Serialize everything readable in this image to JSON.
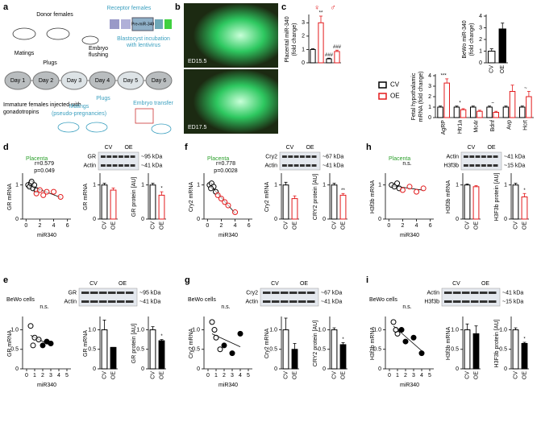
{
  "diagram": {
    "letter": "a",
    "donor": "Donor females",
    "receptor": "Receptor females",
    "construct": "Pre-miR-340",
    "days": [
      "Day 1",
      "Day 2",
      "Day 3",
      "Day 4",
      "Day 5",
      "Day 6"
    ],
    "matings": "Matings",
    "plugs": "Plugs",
    "flushing": [
      "Embryo",
      "flushing"
    ],
    "incubation": [
      "Blastocyst incubation",
      "with lentivirus"
    ],
    "injection": [
      "Immature females injected with",
      "gonadotropins"
    ],
    "pseudo": [
      "Matings",
      "(pseudo-pregnancies)"
    ],
    "plugs2": "Plugs",
    "transfer": "Embryo transfer"
  },
  "photos": {
    "letter": "b",
    "labels": [
      "ED15.5",
      "ED17.5"
    ]
  },
  "panels": [
    {
      "letter": "c"
    },
    {
      "letter": "d",
      "title": "Placenta",
      "blot_rows": [
        "GR",
        "Actin"
      ],
      "lanes": [
        "CV",
        "OE"
      ],
      "sizes": [
        "~95 kDa",
        "~41 kDa"
      ]
    },
    {
      "letter": "f",
      "title": "Placenta",
      "blot_rows": [
        "Cry2",
        "Actin"
      ],
      "lanes": [
        "CV",
        "OE"
      ],
      "sizes": [
        "~67 kDa",
        "~41 kDa"
      ]
    },
    {
      "letter": "h",
      "title": "Placenta",
      "blot_rows": [
        "Actin",
        "H3f3b"
      ],
      "lanes": [
        "CV",
        "OE"
      ],
      "sizes": [
        "~41 kDa",
        "~15 kDa"
      ]
    },
    {
      "letter": "e",
      "title": "BeWo cells",
      "blot_rows": [
        "GR",
        "Actin"
      ],
      "lanes": [
        "CV",
        "OE"
      ],
      "sizes": [
        "~95 kDa",
        "~41 kDa"
      ]
    },
    {
      "letter": "g",
      "title": "BeWo cells",
      "blot_rows": [
        "Cry2",
        "Actin"
      ],
      "lanes": [
        "CV",
        "OE"
      ],
      "sizes": [
        "~67 kDa",
        "~41 kDa"
      ]
    },
    {
      "letter": "i",
      "title": "BeWo cells",
      "blot_rows": [
        "Actin",
        "H3f3b"
      ],
      "lanes": [
        "CV",
        "OE"
      ],
      "sizes": [
        "~41 kDa",
        "~15 kDa"
      ]
    }
  ],
  "chart_data": [
    {
      "type": "bar",
      "ylabel": [
        "Placental miR-340",
        "(fold change)"
      ],
      "categories": [
        null,
        null,
        null,
        null
      ],
      "values": [
        1,
        3,
        0.3,
        0.85
      ],
      "errors": [
        0.05,
        0.5,
        0.05,
        0.1
      ],
      "colors": [
        "#ffffff",
        "#ffffff",
        "#ffffff",
        "#ffffff"
      ],
      "edges": [
        "#000000",
        "#e31a1c",
        "#000000",
        "#e31a1c"
      ],
      "significance": [
        null,
        "**",
        "###",
        "###"
      ],
      "group_labels": [
        "♀",
        "♂"
      ],
      "ylim": [
        0,
        3.5
      ],
      "yticks": [
        0,
        1,
        2,
        3
      ]
    },
    {
      "type": "bar",
      "ylabel": [
        "BeWo miR-340",
        "(fold change)"
      ],
      "categories": [
        "CV",
        "OE"
      ],
      "values": [
        1,
        2.9
      ],
      "errors": [
        0.2,
        0.5
      ],
      "colors": [
        "#ffffff",
        "#000000"
      ],
      "edges": [
        "#000000",
        "#000000"
      ],
      "ylim": [
        0,
        4
      ],
      "yticks": [
        0,
        1,
        2,
        3,
        4
      ]
    },
    {
      "type": "bar",
      "ylabel": [
        "Fetal hypothalamic",
        "mRNA (fold change)"
      ],
      "categories": [
        "AgRP",
        "Htr1a",
        "Mc4r",
        "Bdnf",
        "Avp",
        "Hcrt"
      ],
      "series": [
        {
          "name": "CV",
          "color": "#000000",
          "values": [
            1,
            1,
            1,
            1,
            1,
            1
          ],
          "errors": [
            0.1,
            0.1,
            0.1,
            0.1,
            0.1,
            0.1
          ]
        },
        {
          "name": "OE",
          "color": "#e31a1c",
          "values": [
            3.3,
            0.75,
            0.6,
            0.5,
            2.5,
            2.0
          ],
          "errors": [
            0.4,
            0.1,
            0.1,
            0.1,
            0.6,
            0.5
          ]
        }
      ],
      "significance": [
        "***",
        "*",
        null,
        "~",
        null,
        "~"
      ],
      "legend": true,
      "ylim": [
        0,
        4
      ],
      "yticks": [
        0,
        1,
        2,
        3,
        4
      ]
    },
    {
      "type": "scatter",
      "ylabel": [
        "GR mRNA"
      ],
      "xlabel": "miR340",
      "annotations": [
        "r=0.579",
        "p=0.049"
      ],
      "xlim": [
        -0.5,
        6.5
      ],
      "xticks": [
        0,
        2,
        4,
        6
      ],
      "ylim": [
        0,
        1.3
      ],
      "yticks": [
        0,
        1
      ],
      "series": [
        {
          "color": "#000000",
          "filled": false,
          "x": [
            0.3,
            0.5,
            0.7,
            1,
            1.2,
            1.5,
            0.8
          ],
          "values": [
            1.0,
            0.95,
            1.05,
            0.9,
            1.0,
            0.85,
            1.1
          ]
        },
        {
          "color": "#e31a1c",
          "filled": false,
          "x": [
            1.5,
            2,
            2.5,
            3,
            4,
            5
          ],
          "values": [
            0.75,
            0.85,
            0.7,
            0.8,
            0.8,
            0.65
          ]
        }
      ]
    },
    {
      "type": "bar",
      "ylabel": [
        "GR mRNA"
      ],
      "categories": [
        "CV",
        "OE"
      ],
      "values": [
        1,
        0.85
      ],
      "errors": [
        0.05,
        0.06
      ],
      "colors": [
        "#ffffff",
        "#ffffff"
      ],
      "edges": [
        "#000000",
        "#e31a1c"
      ],
      "ylim": [
        0,
        1.3
      ],
      "yticks": [
        0,
        1
      ]
    },
    {
      "type": "bar",
      "ylabel": [
        "GR protein [AU]"
      ],
      "categories": [
        "CV",
        "OE"
      ],
      "values": [
        1,
        0.7
      ],
      "errors": [
        0.05,
        0.1
      ],
      "colors": [
        "#ffffff",
        "#ffffff"
      ],
      "edges": [
        "#000000",
        "#e31a1c"
      ],
      "significance": [
        null,
        "*"
      ],
      "ylim": [
        0,
        1.3
      ],
      "yticks": [
        0,
        1
      ]
    },
    {
      "type": "scatter",
      "ylabel": [
        "Cry2 mRNA"
      ],
      "xlabel": "miR340",
      "annotations": [
        "r=0.778",
        "p=0.0028"
      ],
      "xlim": [
        -0.5,
        6.5
      ],
      "xticks": [
        0,
        2,
        4,
        6
      ],
      "ylim": [
        0,
        1.3
      ],
      "yticks": [
        0,
        1
      ],
      "series": [
        {
          "color": "#000000",
          "filled": false,
          "x": [
            0.3,
            0.6,
            0.9,
            1.2,
            0.5
          ],
          "values": [
            1,
            1.05,
            0.95,
            0.8,
            0.9
          ]
        },
        {
          "color": "#e31a1c",
          "filled": false,
          "x": [
            1.5,
            2,
            3,
            2.5,
            4
          ],
          "values": [
            0.7,
            0.6,
            0.4,
            0.5,
            0.2
          ]
        }
      ]
    },
    {
      "type": "bar",
      "ylabel": [
        "Cry2 mRNA"
      ],
      "categories": [
        "CV",
        "OE"
      ],
      "values": [
        1,
        0.6
      ],
      "errors": [
        0.08,
        0.08
      ],
      "colors": [
        "#ffffff",
        "#ffffff"
      ],
      "edges": [
        "#000000",
        "#e31a1c"
      ],
      "ylim": [
        0,
        1.3
      ],
      "yticks": [
        0,
        1
      ]
    },
    {
      "type": "bar",
      "ylabel": [
        "CRY2 protein [AU]"
      ],
      "categories": [
        "CV",
        "OE"
      ],
      "values": [
        1,
        0.7
      ],
      "errors": [
        0.05,
        0.05
      ],
      "colors": [
        "#ffffff",
        "#ffffff"
      ],
      "edges": [
        "#000000",
        "#e31a1c"
      ],
      "significance": [
        null,
        "**"
      ],
      "ylim": [
        0,
        1.3
      ],
      "yticks": [
        0,
        1
      ]
    },
    {
      "type": "scatter",
      "ylabel": [
        "H3f3b mRNA"
      ],
      "xlabel": "miR340",
      "annotations": [
        "n.s."
      ],
      "xlim": [
        -0.5,
        6.5
      ],
      "xticks": [
        0,
        2,
        4,
        6
      ],
      "ylim": [
        0,
        1.3
      ],
      "yticks": [
        0,
        1
      ],
      "series": [
        {
          "color": "#000000",
          "filled": false,
          "x": [
            0.4,
            0.8,
            1.2,
            1.5
          ],
          "values": [
            1,
            0.95,
            1.05,
            0.9
          ]
        },
        {
          "color": "#e31a1c",
          "filled": false,
          "x": [
            2,
            3,
            4,
            5
          ],
          "values": [
            0.85,
            0.95,
            0.8,
            0.9
          ]
        }
      ]
    },
    {
      "type": "bar",
      "ylabel": [
        "H3f3b mRNA"
      ],
      "categories": [
        "CV",
        "OE"
      ],
      "values": [
        1,
        0.95
      ],
      "errors": [
        0.03,
        0.03
      ],
      "colors": [
        "#ffffff",
        "#ffffff"
      ],
      "edges": [
        "#000000",
        "#e31a1c"
      ],
      "ylim": [
        0,
        1.3
      ],
      "yticks": [
        0,
        1
      ]
    },
    {
      "type": "bar",
      "ylabel": [
        "H3F3b protein [AU]"
      ],
      "categories": [
        "CV",
        "OE"
      ],
      "values": [
        1,
        0.65
      ],
      "errors": [
        0.05,
        0.1
      ],
      "colors": [
        "#ffffff",
        "#ffffff"
      ],
      "edges": [
        "#000000",
        "#e31a1c"
      ],
      "significance": [
        null,
        "*"
      ],
      "ylim": [
        0,
        1.3
      ],
      "yticks": [
        0,
        1
      ]
    },
    {
      "type": "scatter",
      "ylabel": [
        "GR mRNA"
      ],
      "xlabel": "miR340",
      "annotations": [
        "n.s."
      ],
      "xlim": [
        -0.5,
        5.5
      ],
      "xticks": [
        0,
        1,
        2,
        3,
        4,
        5
      ],
      "ylim": [
        0,
        1.3
      ],
      "yticks": [
        0,
        0.5,
        {
          "value": 1,
          "label": "1.0"
        }
      ],
      "series": [
        {
          "color": "#000000",
          "filled": false,
          "x": [
            0.5,
            1,
            1.5,
            0.8
          ],
          "values": [
            1.1,
            0.8,
            0.75,
            0.6
          ]
        },
        {
          "color": "#000000",
          "filled": true,
          "x": [
            2,
            2.5,
            3
          ],
          "values": [
            0.6,
            0.7,
            0.65
          ]
        }
      ]
    },
    {
      "type": "bar",
      "ylabel": [
        "GR mRNA"
      ],
      "categories": [
        "CV",
        "OE"
      ],
      "values": [
        1,
        0.55
      ],
      "errors": [
        0.25,
        0
      ],
      "colors": [
        "#ffffff",
        "#000000"
      ],
      "edges": [
        "#000000",
        "#000000"
      ],
      "ylim": [
        0,
        1.3
      ],
      "yticks": [
        0,
        0.5,
        {
          "value": 1,
          "label": "1.0"
        }
      ]
    },
    {
      "type": "bar",
      "ylabel": [
        "GR protein [AU]"
      ],
      "categories": [
        "CV",
        "OE"
      ],
      "values": [
        1,
        0.72
      ],
      "errors": [
        0.08,
        0.03
      ],
      "colors": [
        "#ffffff",
        "#000000"
      ],
      "edges": [
        "#000000",
        "#000000"
      ],
      "significance": [
        null,
        "*"
      ],
      "ylim": [
        0,
        1.3
      ],
      "yticks": [
        0,
        0.5,
        {
          "value": 1,
          "label": "1.0"
        }
      ]
    },
    {
      "type": "scatter",
      "ylabel": [
        "Cry2 mRNA"
      ],
      "xlabel": "miR340",
      "annotations": [
        "n.s."
      ],
      "xlim": [
        -0.5,
        5.5
      ],
      "xticks": [
        0,
        1,
        2,
        3,
        4,
        5
      ],
      "ylim": [
        0,
        1.3
      ],
      "yticks": [
        0,
        0.5,
        {
          "value": 1,
          "label": "1.0"
        }
      ],
      "series": [
        {
          "color": "#000000",
          "filled": false,
          "x": [
            0.5,
            1,
            1.5,
            0.8
          ],
          "values": [
            1.2,
            0.8,
            0.5,
            1
          ]
        },
        {
          "color": "#000000",
          "filled": true,
          "x": [
            2,
            3,
            4
          ],
          "values": [
            0.6,
            0.4,
            0.9
          ]
        }
      ]
    },
    {
      "type": "bar",
      "ylabel": [
        "Cry2 mRNA"
      ],
      "categories": [
        "CV",
        "OE"
      ],
      "values": [
        1,
        0.5
      ],
      "errors": [
        0.3,
        0.15
      ],
      "colors": [
        "#ffffff",
        "#000000"
      ],
      "edges": [
        "#000000",
        "#000000"
      ],
      "ylim": [
        0,
        1.3
      ],
      "yticks": [
        0,
        0.5,
        {
          "value": 1,
          "label": "1.0"
        }
      ]
    },
    {
      "type": "bar",
      "ylabel": [
        "CRY2 protein [AU]"
      ],
      "categories": [
        "CV",
        "OE"
      ],
      "values": [
        1,
        0.62
      ],
      "errors": [
        0.05,
        0.05
      ],
      "colors": [
        "#ffffff",
        "#000000"
      ],
      "edges": [
        "#000000",
        "#000000"
      ],
      "significance": [
        null,
        "*"
      ],
      "ylim": [
        0,
        1.3
      ],
      "yticks": [
        0,
        0.5,
        {
          "value": 1,
          "label": "1.0"
        }
      ]
    },
    {
      "type": "scatter",
      "ylabel": [
        "H3f3b mRNA"
      ],
      "xlabel": "miR340",
      "annotations": [
        "n.s."
      ],
      "xlim": [
        -0.5,
        5.5
      ],
      "xticks": [
        0,
        1,
        2,
        3,
        4,
        5
      ],
      "ylim": [
        0,
        1.3
      ],
      "yticks": [
        0,
        0.5,
        {
          "value": 1,
          "label": "1.0"
        }
      ],
      "series": [
        {
          "color": "#000000",
          "filled": false,
          "x": [
            0.5,
            1,
            0.8
          ],
          "values": [
            1.2,
            0.9,
            1.0
          ]
        },
        {
          "color": "#000000",
          "filled": true,
          "x": [
            2,
            3,
            4,
            1.5
          ],
          "values": [
            0.7,
            0.8,
            0.4,
            1.0
          ]
        }
      ]
    },
    {
      "type": "bar",
      "ylabel": [
        "H3f3b mRNA"
      ],
      "categories": [
        "CV",
        "OE"
      ],
      "values": [
        1,
        0.9
      ],
      "errors": [
        0.15,
        0.2
      ],
      "colors": [
        "#ffffff",
        "#000000"
      ],
      "edges": [
        "#000000",
        "#000000"
      ],
      "ylim": [
        0,
        1.3
      ],
      "yticks": [
        0,
        0.5,
        {
          "value": 1,
          "label": "1.0"
        }
      ]
    },
    {
      "type": "bar",
      "ylabel": [
        "H3F3b protein [AU]"
      ],
      "categories": [
        "CV",
        "OE"
      ],
      "values": [
        1,
        0.65
      ],
      "errors": [
        0.05,
        0.03
      ],
      "colors": [
        "#ffffff",
        "#000000"
      ],
      "edges": [
        "#000000",
        "#000000"
      ],
      "significance": [
        null,
        "*"
      ],
      "ylim": [
        0,
        1.3
      ],
      "yticks": [
        0,
        0.5,
        {
          "value": 1,
          "label": "1.0"
        }
      ]
    }
  ]
}
